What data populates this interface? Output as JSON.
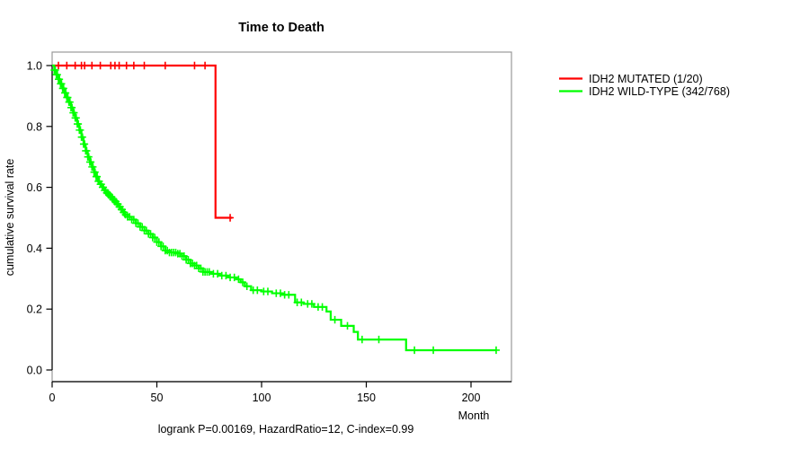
{
  "window": {
    "background": "#ffffff"
  },
  "chart_data": {
    "type": "line",
    "subtype": "kaplan-meier-step",
    "title": "Time to Death",
    "xlabel": "Month",
    "ylabel": "cumulative survival rate",
    "caption": "logrank P=0.00169, HazardRatio=12, C-index=0.99",
    "xlim": [
      0,
      219
    ],
    "ylim": [
      0,
      1.0
    ],
    "x_ticks": [
      "0",
      "50",
      "100",
      "150",
      "200"
    ],
    "x_tick_values": [
      0,
      50,
      100,
      150,
      200
    ],
    "y_ticks": [
      "0.0",
      "0.2",
      "0.4",
      "0.6",
      "0.8",
      "1.0"
    ],
    "y_tick_values": [
      0,
      0.2,
      0.4,
      0.6,
      0.8,
      1.0
    ],
    "grid": false,
    "box_color": "#999999",
    "axis_color": "#000000",
    "legend": {
      "position": "right-outside",
      "entries": [
        {
          "label": "IDH2 MUTATED (1/20)",
          "color": "#ff0000"
        },
        {
          "label": "IDH2 WILD-TYPE (342/768)",
          "color": "#00ff00"
        }
      ]
    },
    "series": [
      {
        "name": "IDH2 MUTATED (1/20)",
        "color": "#ff0000",
        "events_over_n": "1/20",
        "points": [
          [
            0,
            1.0
          ],
          [
            78,
            0.5
          ]
        ],
        "end_month": 86,
        "censor_months": [
          3,
          7,
          11,
          14,
          15.5,
          19,
          23,
          28,
          30,
          32,
          35.5,
          39,
          44,
          54,
          68,
          73,
          85
        ]
      },
      {
        "name": "IDH2 WILD-TYPE (342/768)",
        "color": "#00ff00",
        "events_over_n": "342/768",
        "points": [
          [
            0,
            1.0
          ],
          [
            1,
            0.985
          ],
          [
            2,
            0.97
          ],
          [
            3,
            0.955
          ],
          [
            4,
            0.94
          ],
          [
            5,
            0.925
          ],
          [
            6,
            0.91
          ],
          [
            7,
            0.895
          ],
          [
            8,
            0.88
          ],
          [
            9,
            0.862
          ],
          [
            10,
            0.845
          ],
          [
            11,
            0.828
          ],
          [
            12,
            0.808
          ],
          [
            13,
            0.788
          ],
          [
            14,
            0.765
          ],
          [
            15,
            0.742
          ],
          [
            16,
            0.72
          ],
          [
            17,
            0.7
          ],
          [
            18,
            0.683
          ],
          [
            19,
            0.667
          ],
          [
            20,
            0.65
          ],
          [
            21,
            0.635
          ],
          [
            22,
            0.62
          ],
          [
            23,
            0.61
          ],
          [
            24,
            0.6
          ],
          [
            25,
            0.59
          ],
          [
            26,
            0.582
          ],
          [
            27,
            0.575
          ],
          [
            28,
            0.568
          ],
          [
            29,
            0.56
          ],
          [
            30,
            0.553
          ],
          [
            31,
            0.545
          ],
          [
            32,
            0.536
          ],
          [
            33,
            0.527
          ],
          [
            34,
            0.518
          ],
          [
            35,
            0.51
          ],
          [
            36,
            0.503
          ],
          [
            38,
            0.494
          ],
          [
            40,
            0.482
          ],
          [
            42,
            0.47
          ],
          [
            44,
            0.458
          ],
          [
            46,
            0.447
          ],
          [
            48,
            0.435
          ],
          [
            50,
            0.42
          ],
          [
            52,
            0.406
          ],
          [
            54,
            0.392
          ],
          [
            56,
            0.386
          ],
          [
            60,
            0.382
          ],
          [
            62,
            0.374
          ],
          [
            64,
            0.362
          ],
          [
            66,
            0.35
          ],
          [
            68,
            0.343
          ],
          [
            70,
            0.334
          ],
          [
            72,
            0.322
          ],
          [
            76,
            0.316
          ],
          [
            80,
            0.31
          ],
          [
            84,
            0.304
          ],
          [
            88,
            0.298
          ],
          [
            90,
            0.288
          ],
          [
            92,
            0.275
          ],
          [
            95,
            0.262
          ],
          [
            100,
            0.258
          ],
          [
            105,
            0.252
          ],
          [
            110,
            0.247
          ],
          [
            116,
            0.222
          ],
          [
            120,
            0.217
          ],
          [
            125,
            0.207
          ],
          [
            131,
            0.192
          ],
          [
            133,
            0.165
          ],
          [
            138,
            0.145
          ],
          [
            144,
            0.125
          ],
          [
            146,
            0.1
          ],
          [
            169,
            0.065
          ]
        ],
        "end_month": 212,
        "censor_months": [
          1,
          1.5,
          2,
          2.5,
          3,
          3.5,
          4,
          4.5,
          5,
          5.5,
          6,
          6.5,
          7,
          7.5,
          8,
          8.5,
          9,
          9.5,
          10,
          10.5,
          11,
          11.5,
          12,
          12.5,
          13,
          13.5,
          14,
          14.5,
          15,
          15.5,
          16,
          16.5,
          17,
          17.5,
          18,
          18.5,
          19,
          19.5,
          20,
          20.5,
          21,
          21.5,
          22,
          22.5,
          23,
          23.5,
          24,
          24.5,
          25,
          25.5,
          26,
          26.5,
          27,
          27.5,
          28,
          28.5,
          29,
          29.5,
          30,
          30.5,
          31,
          31.5,
          32,
          32.5,
          33,
          33.5,
          34,
          34.5,
          35,
          36,
          37,
          38,
          39,
          40,
          41,
          42,
          43,
          44,
          45,
          46,
          47,
          48,
          49,
          50,
          51,
          52,
          53,
          54,
          55,
          56,
          57,
          58,
          59,
          60,
          61,
          62,
          63,
          64,
          65,
          66,
          67,
          68,
          69,
          70,
          71,
          72,
          73,
          74,
          75,
          77,
          79,
          81,
          83,
          85,
          87,
          89,
          91,
          93,
          96,
          98,
          101,
          103,
          107,
          109,
          111,
          113,
          117,
          119,
          122,
          124,
          127,
          129,
          135,
          141,
          148,
          156,
          173,
          182,
          212
        ]
      }
    ]
  }
}
